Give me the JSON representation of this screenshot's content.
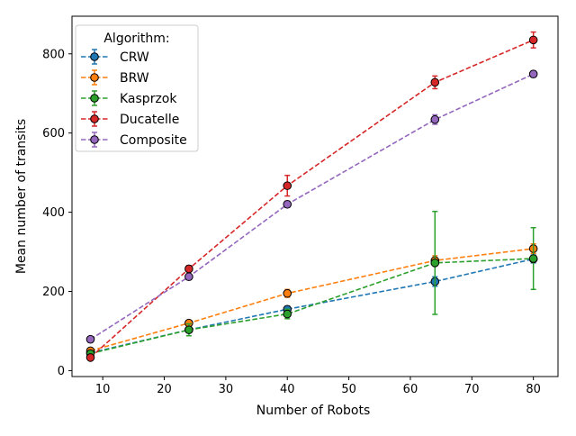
{
  "chart_data": {
    "type": "line",
    "title": "",
    "xlabel": "Number of Robots",
    "ylabel": "Mean number of transits",
    "xlim": [
      5,
      84
    ],
    "ylim": [
      -15,
      895
    ],
    "xticks": [
      10,
      20,
      30,
      40,
      50,
      60,
      70,
      80
    ],
    "yticks": [
      0,
      200,
      400,
      600,
      800
    ],
    "grid": false,
    "legend": {
      "title": "Algorithm:",
      "placement": "top-left"
    },
    "x": [
      8,
      24,
      40,
      64,
      80
    ],
    "series": [
      {
        "name": "CRW",
        "color": "#1f77b4",
        "values": [
          45,
          103,
          155,
          225,
          282
        ],
        "errors": [
          4,
          6,
          8,
          12,
          10
        ]
      },
      {
        "name": "BRW",
        "color": "#ff7f0e",
        "values": [
          50,
          120,
          195,
          278,
          308
        ],
        "errors": [
          4,
          6,
          10,
          12,
          12
        ]
      },
      {
        "name": "Kasprzok",
        "color": "#2ca02c",
        "values": [
          43,
          103,
          143,
          272,
          283
        ],
        "errors": [
          4,
          15,
          12,
          130,
          78
        ]
      },
      {
        "name": "Ducatelle",
        "color": "#d62728",
        "values": [
          33,
          257,
          467,
          728,
          835
        ],
        "errors": [
          4,
          8,
          26,
          16,
          20
        ]
      },
      {
        "name": "Composite",
        "color": "#9467bd",
        "values": [
          79,
          237,
          420,
          634,
          749
        ],
        "errors": [
          4,
          6,
          8,
          12,
          8
        ]
      }
    ]
  }
}
